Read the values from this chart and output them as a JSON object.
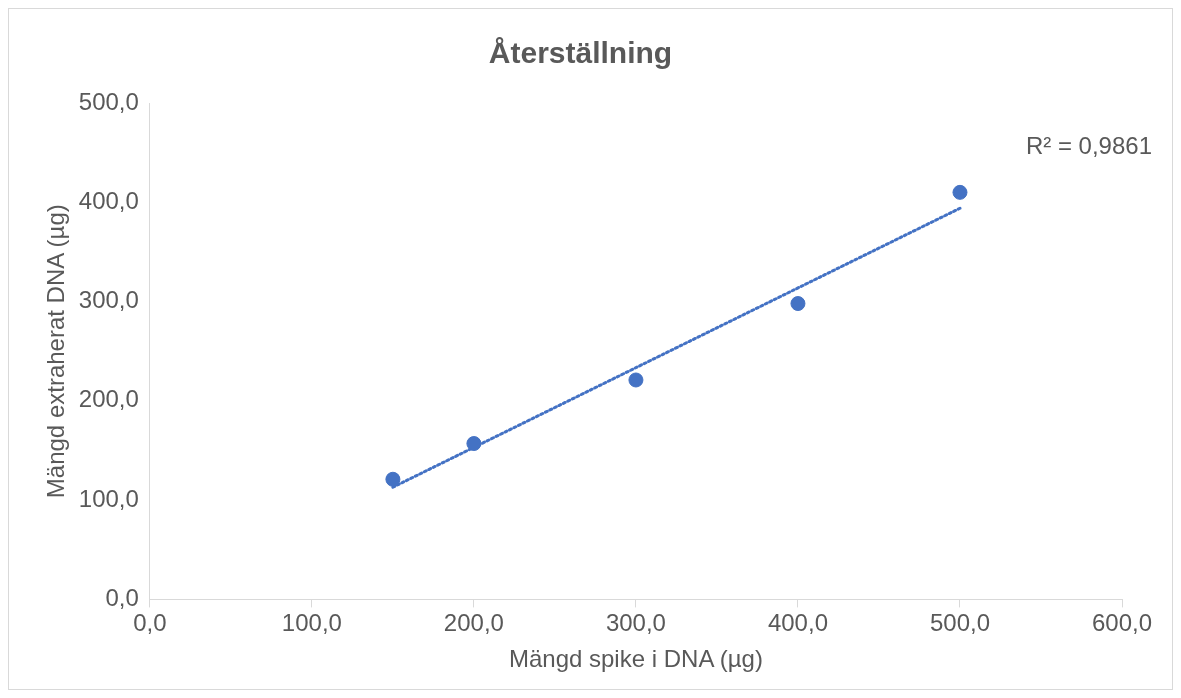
{
  "chart_data": {
    "type": "scatter",
    "title": "Återställning",
    "xlabel": "Mängd spike i DNA (µg)",
    "ylabel": "Mängd extraherat DNA (µg)",
    "series": [
      {
        "color": "#4472c4",
        "x": [
          150,
          200,
          300,
          400,
          500
        ],
        "values": [
          121,
          157,
          221,
          298,
          410
        ],
        "marker": "circle"
      },
      {
        "type": "line",
        "color": "#4472c4",
        "x": [
          150,
          500
        ],
        "values": [
          113,
          394
        ],
        "line_style": "dotted",
        "marker": "none"
      }
    ],
    "xlim": [
      0,
      600
    ],
    "xticks": [
      {
        "value": 0,
        "label": "0,0"
      },
      {
        "value": 100,
        "label": "100,0"
      },
      {
        "value": 200,
        "label": "200,0"
      },
      {
        "value": 300,
        "label": "300,0"
      },
      {
        "value": 400,
        "label": "400,0"
      },
      {
        "value": 500,
        "label": "500,0"
      },
      {
        "value": 600,
        "label": "600,0"
      }
    ],
    "ylim": [
      0,
      500
    ],
    "yticks": [
      {
        "value": 0,
        "label": "0,0"
      },
      {
        "value": 100,
        "label": "100,0"
      },
      {
        "value": 200,
        "label": "200,0"
      },
      {
        "value": 300,
        "label": "300,0"
      },
      {
        "value": 400,
        "label": "400,0"
      },
      {
        "value": 500,
        "label": "500,0"
      }
    ],
    "annotations": [
      "R² = 0,9861"
    ],
    "grid": false,
    "legend": false
  }
}
